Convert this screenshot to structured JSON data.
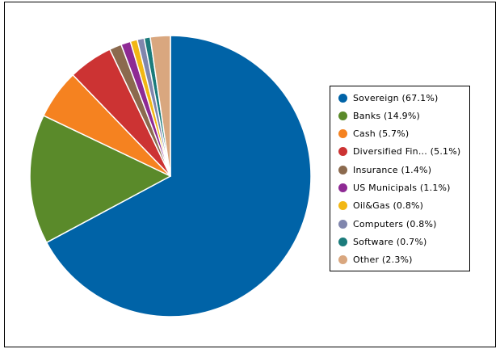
{
  "chart_data": {
    "type": "pie",
    "title": "",
    "legend_position": "right",
    "start_angle": "12 o'clock, clockwise",
    "categories": [
      "Sovereign",
      "Banks",
      "Cash",
      "Diversified Fin...",
      "Insurance",
      "US Municipals",
      "Oil&Gas",
      "Computers",
      "Software",
      "Other"
    ],
    "values": [
      67.1,
      14.9,
      5.7,
      5.1,
      1.4,
      1.1,
      0.8,
      0.8,
      0.7,
      2.3
    ],
    "colors": [
      "#0063a7",
      "#5a8a2a",
      "#f58220",
      "#cc3333",
      "#8b6a4e",
      "#8e2a94",
      "#f2b714",
      "#8086ad",
      "#1b7b7b",
      "#d9a77f"
    ],
    "legend_labels": [
      "Sovereign (67.1%)",
      "Banks (14.9%)",
      "Cash (5.7%)",
      "Diversified Fin... (5.1%)",
      "Insurance (1.4%)",
      "US Municipals (1.1%)",
      "Oil&Gas (0.8%)",
      "Computers (0.8%)",
      "Software (0.7%)",
      "Other (2.3%)"
    ]
  }
}
